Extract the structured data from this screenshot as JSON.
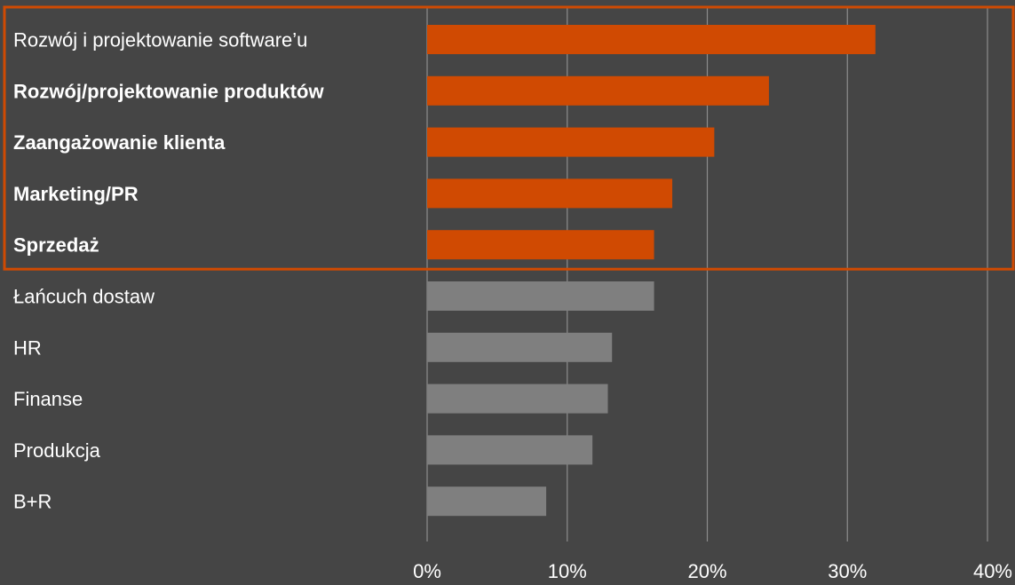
{
  "chart_data": {
    "type": "bar",
    "orientation": "horizontal",
    "title": "",
    "xlabel": "",
    "ylabel": "",
    "xlim": [
      0,
      40
    ],
    "x_ticks": [
      "0%",
      "10%",
      "20%",
      "30%",
      "40%"
    ],
    "grid": true,
    "categories": [
      "Rozwój i projektowanie software’u",
      "Rozwój/projektowanie produktów",
      "Zaangażowanie klienta",
      "Marketing/PR",
      "Sprzedaż",
      "Łańcuch dostaw",
      "HR",
      "Finanse",
      "Produkcja",
      "B+R"
    ],
    "values": [
      32,
      24.4,
      20.5,
      17.5,
      16.2,
      16.2,
      13.2,
      12.9,
      11.8,
      8.5
    ],
    "highlighted": [
      true,
      true,
      true,
      true,
      true,
      false,
      false,
      false,
      false,
      false
    ],
    "bold_labels": [
      false,
      true,
      true,
      true,
      true,
      false,
      false,
      false,
      false,
      false
    ],
    "colors": {
      "background": "#454545",
      "highlight_bar": "#D04A02",
      "default_bar": "#7F7F7F",
      "highlight_box": "#D04A02",
      "grid": "#8C8C8C",
      "text": "#FFFFFF"
    }
  }
}
